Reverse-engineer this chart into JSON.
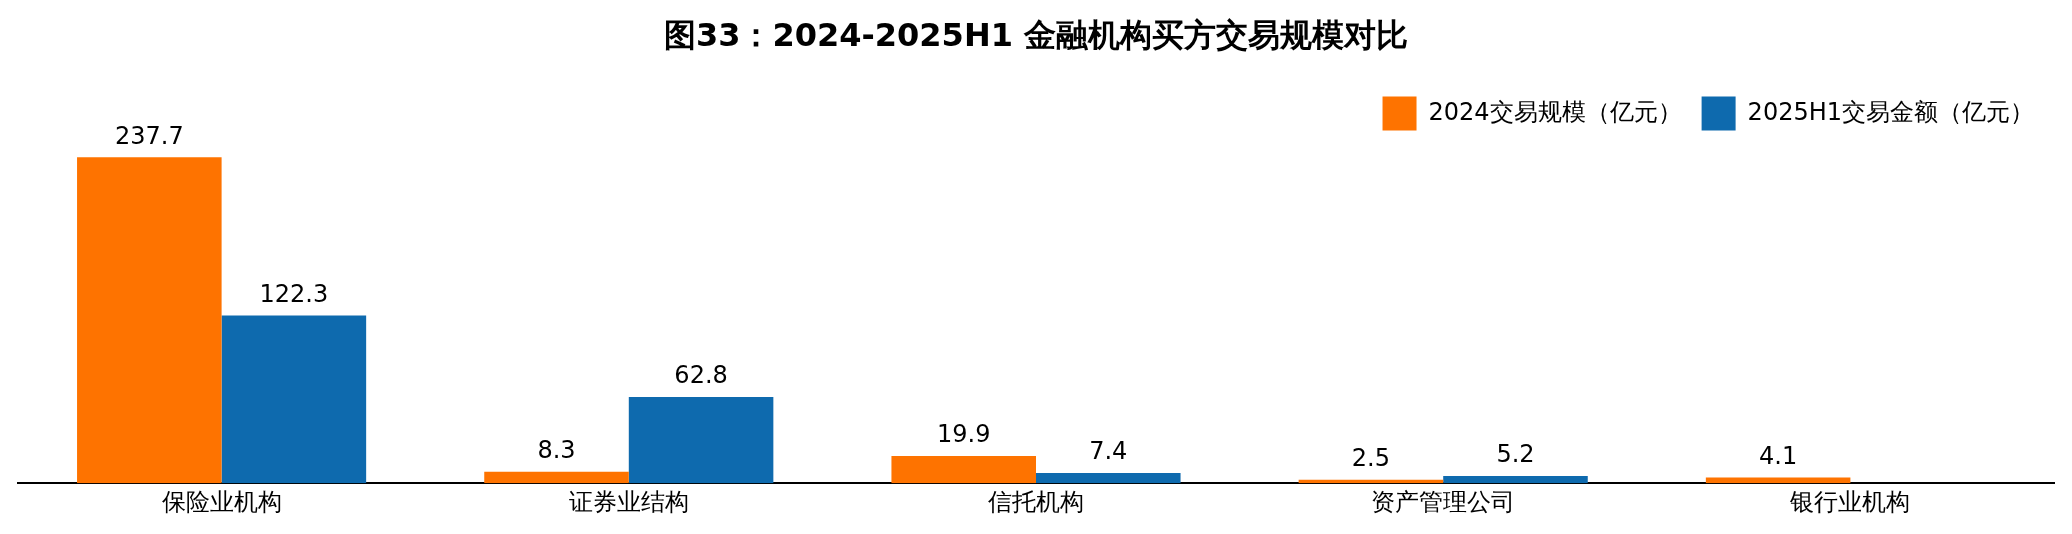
{
  "chart_data": {
    "type": "bar",
    "title": "图33：2024-2025H1 金融机构买方交易规模对比",
    "categories": [
      "保险业机构",
      "证券业结构",
      "信托机构",
      "资产管理公司",
      "银行业机构"
    ],
    "series": [
      {
        "name": "2024交易规模（亿元）",
        "color": "#fe7300",
        "values": [
          237.7,
          8.3,
          19.9,
          2.5,
          4.1
        ]
      },
      {
        "name": "2025H1交易金额（亿元）",
        "color": "#0e6aae",
        "values": [
          122.3,
          62.8,
          7.4,
          5.2,
          null
        ]
      }
    ],
    "data_labels": true,
    "legend": "top right",
    "grid": false,
    "tick_labels": "x"
  }
}
